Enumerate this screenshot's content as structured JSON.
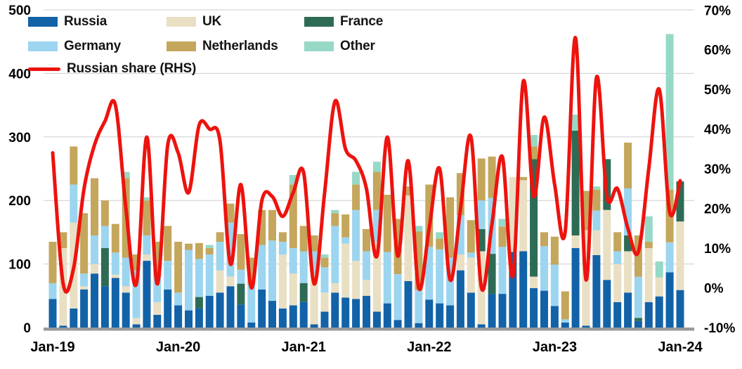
{
  "chart_data": {
    "type": "bar",
    "subtype": "stacked-bars-with-line-overlay",
    "title": "",
    "months": [
      "Jan-19",
      "Feb-19",
      "Mar-19",
      "Apr-19",
      "May-19",
      "Jun-19",
      "Jul-19",
      "Aug-19",
      "Sep-19",
      "Oct-19",
      "Nov-19",
      "Dec-19",
      "Jan-20",
      "Feb-20",
      "Mar-20",
      "Apr-20",
      "May-20",
      "Jun-20",
      "Jul-20",
      "Aug-20",
      "Sep-20",
      "Oct-20",
      "Nov-20",
      "Dec-20",
      "Jan-21",
      "Feb-21",
      "Mar-21",
      "Apr-21",
      "May-21",
      "Jun-21",
      "Jul-21",
      "Aug-21",
      "Sep-21",
      "Oct-21",
      "Nov-21",
      "Dec-21",
      "Jan-22",
      "Feb-22",
      "Mar-22",
      "Apr-22",
      "May-22",
      "Jun-22",
      "Jul-22",
      "Aug-22",
      "Sep-22",
      "Oct-22",
      "Nov-22",
      "Dec-22",
      "Jan-23",
      "Feb-23",
      "Mar-23",
      "Apr-23",
      "May-23",
      "Jun-23",
      "Jul-23",
      "Aug-23",
      "Sep-23",
      "Oct-23",
      "Nov-23",
      "Dec-23",
      "Jan-24"
    ],
    "x_tick_labels": [
      "Jan-19",
      "Jan-20",
      "Jan-21",
      "Jan-22",
      "Jan-23",
      "Jan-24"
    ],
    "left_axis": {
      "ticks": [
        0,
        100,
        200,
        300,
        400,
        500
      ],
      "range": [
        0,
        500
      ]
    },
    "right_axis": {
      "ticks": [
        "-10%",
        "0%",
        "10%",
        "20%",
        "30%",
        "40%",
        "50%",
        "60%",
        "70%"
      ],
      "tick_values": [
        -10,
        0,
        10,
        20,
        30,
        40,
        50,
        60,
        70
      ],
      "range": [
        -10,
        70
      ]
    },
    "grid": "horizontal",
    "legend_position": "top-left",
    "series": [
      {
        "name": "Russia",
        "color": "#1262a8",
        "values": [
          45,
          3,
          30,
          60,
          85,
          65,
          78,
          55,
          5,
          105,
          20,
          60,
          35,
          27,
          30,
          50,
          55,
          65,
          36,
          8,
          60,
          42,
          30,
          35,
          40,
          5,
          25,
          55,
          47,
          45,
          50,
          25,
          38,
          12,
          73,
          7,
          44,
          38,
          35,
          90,
          55,
          5,
          53,
          53,
          119,
          120,
          62,
          58,
          34,
          8,
          125,
          3,
          114,
          75,
          40,
          55,
          10,
          40,
          49,
          87,
          59
        ]
      },
      {
        "name": "UK",
        "color": "#e9dfc3",
        "values": [
          0,
          122,
          135,
          5,
          15,
          0,
          5,
          10,
          10,
          10,
          20,
          0,
          0,
          0,
          0,
          0,
          35,
          15,
          0,
          0,
          0,
          0,
          85,
          50,
          0,
          80,
          30,
          15,
          85,
          60,
          25,
          110,
          0,
          0,
          135,
          0,
          0,
          0,
          0,
          25,
          55,
          115,
          0,
          0,
          118,
          112,
          18,
          0,
          0,
          0,
          20,
          150,
          39,
          110,
          60,
          65,
          0,
          85,
          30,
          0,
          108
        ]
      },
      {
        "name": "France",
        "color": "#2e6b55",
        "values": [
          0,
          0,
          0,
          0,
          0,
          60,
          0,
          0,
          0,
          0,
          0,
          0,
          0,
          0,
          18,
          0,
          0,
          0,
          33,
          0,
          0,
          0,
          0,
          0,
          30,
          0,
          0,
          0,
          0,
          0,
          0,
          0,
          0,
          0,
          0,
          0,
          0,
          0,
          0,
          0,
          0,
          35,
          63,
          0,
          0,
          0,
          185,
          0,
          0,
          0,
          165,
          0,
          0,
          80,
          0,
          25,
          5,
          0,
          0,
          0,
          63
        ]
      },
      {
        "name": "Germany",
        "color": "#9cd5ef",
        "values": [
          25,
          0,
          60,
          20,
          45,
          35,
          35,
          45,
          75,
          30,
          40,
          45,
          20,
          95,
          60,
          65,
          45,
          85,
          22,
          60,
          70,
          95,
          20,
          40,
          50,
          35,
          40,
          90,
          10,
          80,
          45,
          50,
          81,
          72,
          0,
          52,
          83,
          85,
          75,
          62,
          8,
          45,
          88,
          74,
          0,
          0,
          0,
          70,
          65,
          5,
          0,
          0,
          31,
          0,
          20,
          74,
          65,
          0,
          0,
          47,
          0
        ]
      },
      {
        "name": "Netherlands",
        "color": "#c4a65c",
        "values": [
          65,
          25,
          60,
          95,
          90,
          40,
          45,
          125,
          25,
          55,
          55,
          55,
          80,
          10,
          25,
          10,
          15,
          30,
          56,
          42,
          55,
          48,
          15,
          100,
          40,
          25,
          15,
          20,
          36,
          40,
          35,
          60,
          90,
          87,
          14,
          92,
          98,
          17,
          95,
          66,
          51,
          66,
          65,
          32,
          0,
          5,
          20,
          22,
          44,
          44,
          0,
          62,
          33,
          0,
          30,
          72,
          65,
          10,
          0,
          83,
          0
        ]
      },
      {
        "name": "Other",
        "color": "#96d9c6",
        "values": [
          0,
          0,
          0,
          0,
          0,
          0,
          0,
          10,
          0,
          5,
          0,
          0,
          0,
          0,
          0,
          5,
          0,
          0,
          0,
          0,
          0,
          0,
          0,
          15,
          0,
          0,
          5,
          5,
          0,
          20,
          0,
          16,
          0,
          0,
          0,
          9,
          0,
          10,
          0,
          0,
          0,
          0,
          0,
          12,
          0,
          0,
          18,
          0,
          0,
          0,
          25,
          0,
          5,
          0,
          0,
          0,
          0,
          40,
          25,
          245,
          0
        ]
      }
    ],
    "line": {
      "name": "Russian share (RHS)",
      "color": "#ed130e",
      "axis": "right",
      "values": [
        34,
        1,
        5,
        25,
        36,
        42,
        46,
        20,
        1,
        38,
        1,
        36,
        34,
        24,
        41,
        40,
        37,
        6,
        26,
        0,
        22,
        23,
        18,
        24,
        29,
        1,
        24,
        47,
        35,
        32,
        25,
        8,
        38,
        8,
        32,
        0,
        15,
        30,
        2,
        20,
        38,
        0,
        16,
        33,
        3,
        52,
        23,
        43,
        26,
        14,
        63,
        2,
        53,
        23,
        25,
        15,
        9,
        30,
        50,
        19,
        27
      ]
    }
  },
  "legend": {
    "items": [
      {
        "label": "Russia",
        "color": "#1262a8"
      },
      {
        "label": "UK",
        "color": "#e9dfc3"
      },
      {
        "label": "France",
        "color": "#2e6b55"
      },
      {
        "label": "Germany",
        "color": "#9cd5ef"
      },
      {
        "label": "Netherlands",
        "color": "#c4a65c"
      },
      {
        "label": "Other",
        "color": "#96d9c6"
      }
    ],
    "line_item": {
      "label": "Russian share (RHS)",
      "color": "#ed130e"
    }
  },
  "style": {
    "gridline_color": "#cdcdcd",
    "axis_color": "#999999",
    "text_color": "#000000"
  }
}
